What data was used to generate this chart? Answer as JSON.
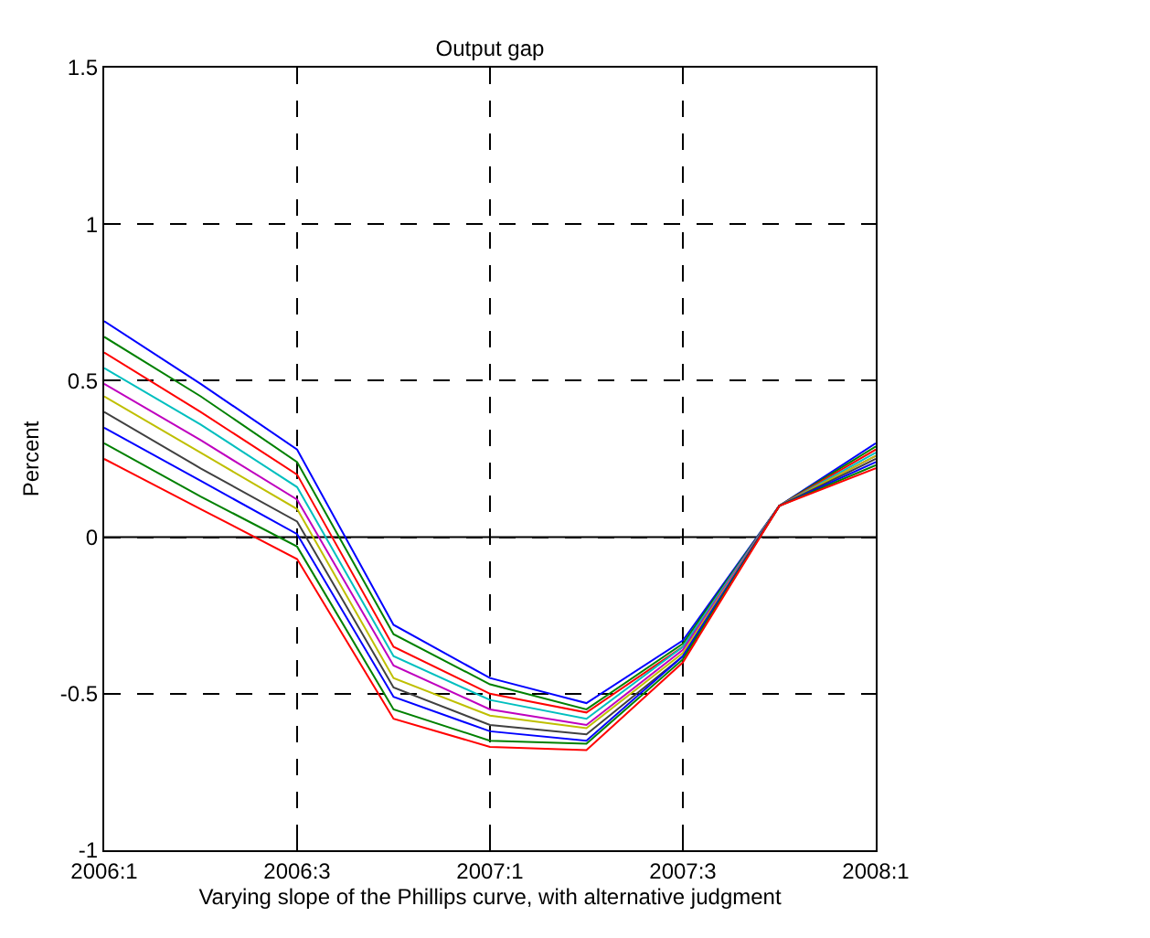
{
  "chart_data": {
    "type": "line",
    "title": "Output gap",
    "xlabel": "Varying slope of the Phillips curve, with alternative judgment",
    "ylabel": "Percent",
    "categories": [
      "2006:1",
      null,
      "2006:3",
      null,
      "2007:1",
      null,
      "2007:3",
      null,
      "2008:1"
    ],
    "ylim": [
      -1,
      1.5
    ],
    "yticks": [
      -1,
      -0.5,
      0,
      0.5,
      1,
      1.5
    ],
    "grid": true,
    "marker": "none",
    "line_style": "solid",
    "ref_lines": [
      {
        "axis": "y",
        "value": 0,
        "color": "#000000",
        "line_style": "solid"
      }
    ],
    "series": [
      {
        "color": "#0000ff",
        "values": [
          0.69,
          0.49,
          0.28,
          -0.28,
          -0.45,
          -0.53,
          -0.33,
          0.1,
          0.3
        ]
      },
      {
        "color": "#008000",
        "values": [
          0.64,
          0.45,
          0.24,
          -0.31,
          -0.47,
          -0.55,
          -0.34,
          0.1,
          0.29
        ]
      },
      {
        "color": "#ff0000",
        "values": [
          0.59,
          0.4,
          0.2,
          -0.35,
          -0.5,
          -0.56,
          -0.35,
          0.1,
          0.28
        ]
      },
      {
        "color": "#00bfbf",
        "values": [
          0.54,
          0.36,
          0.16,
          -0.38,
          -0.52,
          -0.58,
          -0.35,
          0.1,
          0.27
        ]
      },
      {
        "color": "#bf00bf",
        "values": [
          0.49,
          0.31,
          0.12,
          -0.41,
          -0.55,
          -0.6,
          -0.36,
          0.1,
          0.26
        ]
      },
      {
        "color": "#bfbf00",
        "values": [
          0.45,
          0.27,
          0.09,
          -0.45,
          -0.57,
          -0.61,
          -0.37,
          0.1,
          0.26
        ]
      },
      {
        "color": "#404040",
        "values": [
          0.4,
          0.22,
          0.05,
          -0.48,
          -0.6,
          -0.63,
          -0.38,
          0.1,
          0.25
        ]
      },
      {
        "color": "#0000ff",
        "values": [
          0.35,
          0.18,
          0.01,
          -0.51,
          -0.62,
          -0.65,
          -0.38,
          0.1,
          0.24
        ]
      },
      {
        "color": "#008000",
        "values": [
          0.3,
          0.13,
          -0.03,
          -0.55,
          -0.65,
          -0.66,
          -0.39,
          0.1,
          0.23
        ]
      },
      {
        "color": "#ff0000",
        "values": [
          0.25,
          0.09,
          -0.07,
          -0.58,
          -0.67,
          -0.68,
          -0.4,
          0.1,
          0.22
        ]
      }
    ]
  }
}
